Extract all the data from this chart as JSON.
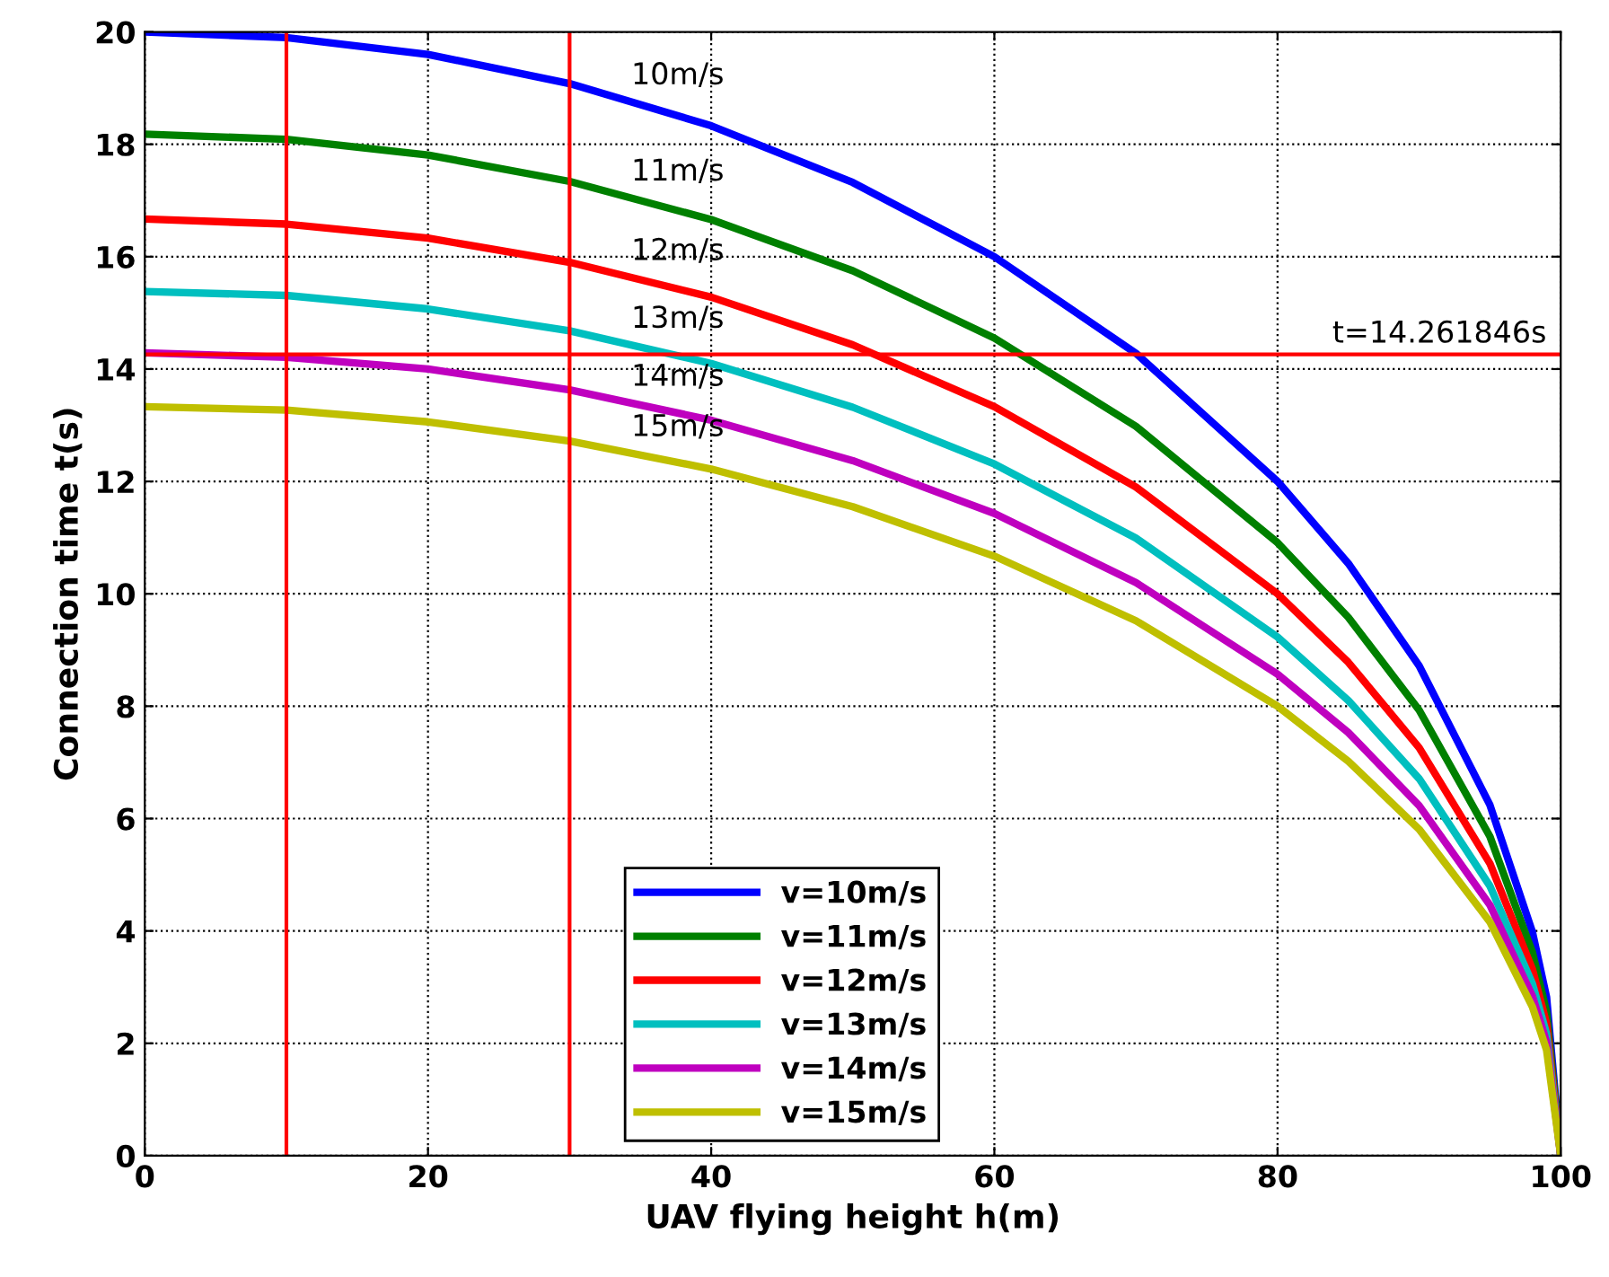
{
  "chart_data": {
    "type": "line",
    "xlabel": "UAV flying height h(m)",
    "ylabel": "Connection time t(s)",
    "x": [
      0,
      10,
      20,
      30,
      40,
      50,
      60,
      70,
      80,
      85,
      90,
      95,
      98,
      99,
      100
    ],
    "series": [
      {
        "name": "v=10m/s",
        "color": "#0000ff",
        "values": [
          20.0,
          19.9,
          19.6,
          19.08,
          18.33,
          17.32,
          16.0,
          14.28,
          12.0,
          10.54,
          8.72,
          6.24,
          3.98,
          2.82,
          0
        ]
      },
      {
        "name": "v=11m/s",
        "color": "#008000",
        "values": [
          18.18,
          18.09,
          17.81,
          17.34,
          16.66,
          15.75,
          14.55,
          12.98,
          10.91,
          9.58,
          7.93,
          5.68,
          3.62,
          2.56,
          0
        ]
      },
      {
        "name": "v=12m/s",
        "color": "#ff0000",
        "values": [
          16.67,
          16.58,
          16.33,
          15.9,
          15.28,
          14.43,
          13.33,
          11.9,
          10.0,
          8.78,
          7.26,
          5.2,
          3.32,
          2.35,
          0
        ]
      },
      {
        "name": "v=13m/s",
        "color": "#00bfbf",
        "values": [
          15.38,
          15.31,
          15.07,
          14.68,
          14.1,
          13.32,
          12.31,
          10.99,
          9.23,
          8.1,
          6.71,
          4.8,
          3.06,
          2.17,
          0
        ]
      },
      {
        "name": "v=14m/s",
        "color": "#bf00bf",
        "values": [
          14.29,
          14.21,
          14.0,
          13.63,
          13.09,
          12.37,
          11.43,
          10.2,
          8.57,
          7.53,
          6.23,
          4.46,
          2.84,
          2.02,
          0
        ]
      },
      {
        "name": "v=15m/s",
        "color": "#bfbf00",
        "values": [
          13.33,
          13.27,
          13.06,
          12.72,
          12.22,
          11.55,
          10.67,
          9.52,
          8.0,
          7.02,
          5.81,
          4.16,
          2.65,
          1.88,
          0
        ]
      }
    ],
    "xlim": [
      0,
      100
    ],
    "xticks": [
      0,
      20,
      40,
      60,
      80,
      100
    ],
    "ylim": [
      0,
      20
    ],
    "yticks": [
      0,
      2,
      4,
      6,
      8,
      10,
      12,
      14,
      16,
      18,
      20
    ],
    "ref_lines": [
      {
        "axis": "x",
        "value": 10,
        "color": "#ff0000"
      },
      {
        "axis": "x",
        "value": 30,
        "color": "#ff0000"
      },
      {
        "axis": "y",
        "value": 14.261846,
        "label": "t=14.261846s",
        "color": "#ff0000"
      }
    ],
    "annotations": [
      "10m/s",
      "11m/s",
      "12m/s",
      "13m/s",
      "14m/s",
      "15m/s"
    ],
    "grid": true,
    "legend": "bottom",
    "line_style": "solid",
    "marker": "none"
  }
}
